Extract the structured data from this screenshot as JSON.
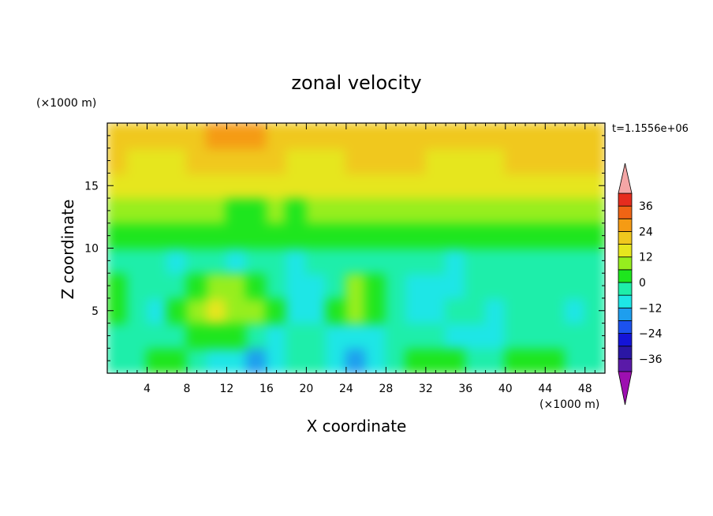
{
  "chart_data": {
    "type": "heatmap",
    "title": "zonal velocity",
    "xlabel": "X coordinate",
    "ylabel": "Z coordinate",
    "x_units": "(×1000 m)",
    "y_units": "(×1000 m)",
    "time_label": "t=1.1556e+06",
    "xlim": [
      0,
      50
    ],
    "ylim": [
      0,
      20
    ],
    "x_ticks": [
      "4",
      "8",
      "12",
      "16",
      "20",
      "24",
      "28",
      "32",
      "36",
      "40",
      "44",
      "48"
    ],
    "y_ticks": [
      "5",
      "10",
      "15"
    ],
    "x_tick_values": [
      4,
      8,
      12,
      16,
      20,
      24,
      28,
      32,
      36,
      40,
      44,
      48
    ],
    "y_tick_values": [
      5,
      10,
      15
    ],
    "colorbar": {
      "levels": [
        -42,
        -36,
        -30,
        -24,
        -18,
        -12,
        -6,
        0,
        6,
        12,
        18,
        24,
        30,
        36,
        42
      ],
      "tick_labels": [
        "36",
        "24",
        "12",
        "0",
        "−12",
        "−24",
        "−36"
      ],
      "tick_values": [
        36,
        24,
        12,
        0,
        -12,
        -24,
        -36
      ],
      "colors": [
        "#5a1aa8",
        "#2a16a4",
        "#1414d8",
        "#1c52ef",
        "#1e9eee",
        "#1ee6e6",
        "#1eeeaa",
        "#1ee61e",
        "#96ee1e",
        "#e6e61e",
        "#f0c81e",
        "#f59b14",
        "#f06414",
        "#e62d1e"
      ],
      "under_color": "#9d0fb0",
      "over_color": "#f4a6a6"
    },
    "field": {
      "nx": 25,
      "nz": 10,
      "x_centers": [
        1,
        3,
        5,
        7,
        9,
        11,
        13,
        15,
        17,
        19,
        21,
        23,
        25,
        27,
        29,
        31,
        33,
        35,
        37,
        39,
        41,
        43,
        45,
        47,
        49
      ],
      "z_centers": [
        1,
        3,
        5,
        7,
        9,
        11,
        13,
        15,
        17,
        19
      ],
      "values": [
        [
          -4,
          -2,
          2,
          4,
          -2,
          -10,
          -8,
          -14,
          -10,
          -4,
          -6,
          -10,
          -18,
          -12,
          -4,
          2,
          4,
          2,
          -4,
          -6,
          2,
          4,
          2,
          -4,
          -4
        ],
        [
          -6,
          -4,
          -6,
          -2,
          2,
          4,
          0,
          -4,
          -8,
          -2,
          -4,
          -8,
          -10,
          -8,
          -6,
          -6,
          -4,
          -8,
          -10,
          -8,
          -4,
          -2,
          -4,
          -6,
          -6
        ],
        [
          2,
          -2,
          -8,
          2,
          8,
          12,
          10,
          6,
          2,
          -10,
          -8,
          0,
          6,
          2,
          -6,
          -10,
          -10,
          -6,
          -2,
          -8,
          -6,
          -6,
          -4,
          -8,
          -6
        ],
        [
          4,
          -2,
          -6,
          -4,
          4,
          8,
          8,
          4,
          -2,
          -12,
          -10,
          -2,
          8,
          4,
          -6,
          -8,
          -12,
          -8,
          -2,
          -6,
          -6,
          -4,
          -6,
          -6,
          -4
        ],
        [
          -6,
          -6,
          -4,
          -8,
          -6,
          -6,
          -8,
          -6,
          -6,
          -8,
          -6,
          -2,
          -4,
          -4,
          -6,
          -6,
          -6,
          -8,
          -6,
          -6,
          -6,
          -4,
          -4,
          -6,
          -6
        ],
        [
          2,
          2,
          2,
          0,
          4,
          2,
          2,
          4,
          2,
          2,
          2,
          2,
          4,
          2,
          0,
          0,
          2,
          2,
          0,
          0,
          2,
          4,
          4,
          2,
          2
        ],
        [
          6,
          8,
          8,
          6,
          6,
          6,
          2,
          4,
          6,
          4,
          6,
          6,
          8,
          8,
          6,
          6,
          8,
          8,
          8,
          6,
          6,
          8,
          8,
          8,
          6
        ],
        [
          12,
          14,
          14,
          12,
          12,
          12,
          12,
          14,
          14,
          12,
          12,
          12,
          14,
          14,
          12,
          12,
          12,
          14,
          12,
          12,
          12,
          12,
          12,
          12,
          12
        ],
        [
          18,
          16,
          16,
          16,
          18,
          18,
          18,
          18,
          18,
          16,
          16,
          16,
          18,
          18,
          18,
          18,
          16,
          16,
          16,
          16,
          18,
          18,
          18,
          18,
          18
        ],
        [
          18,
          18,
          18,
          20,
          22,
          24,
          26,
          26,
          22,
          18,
          18,
          18,
          20,
          20,
          18,
          18,
          18,
          18,
          18,
          20,
          22,
          22,
          22,
          20,
          20
        ]
      ]
    }
  }
}
